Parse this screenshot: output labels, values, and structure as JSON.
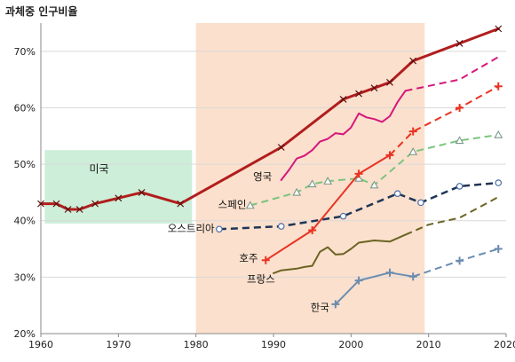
{
  "chart_data": {
    "type": "line",
    "ylabel": "과체중 인구비율",
    "xlim": [
      1960,
      2020
    ],
    "ylim": [
      20,
      75
    ],
    "x_ticks": [
      1960,
      1970,
      1980,
      1990,
      2000,
      2010,
      2020
    ],
    "x_tick_labels": [
      "1960",
      "1970",
      "1980",
      "1990",
      "2000",
      "2010",
      "2020"
    ],
    "y_ticks": [
      20,
      30,
      40,
      50,
      60,
      70
    ],
    "y_tick_labels": [
      "20%",
      "30%",
      "40%",
      "50%",
      "60%",
      "70%"
    ],
    "grid": "horizontal",
    "legend": "none",
    "bands": [
      {
        "label": "미국",
        "x_start": 1960.5,
        "x_end": 1979.5,
        "y_start": 39.5,
        "y_end": 52.5,
        "color": "#cdeed8"
      },
      {
        "label": "",
        "x_start": 1980,
        "x_end": 2009.5,
        "y_start": 20,
        "y_end": 75,
        "color": "#fbe0cd"
      }
    ],
    "series": [
      {
        "name": "미국",
        "color": "#b11d1d",
        "width": 3,
        "solid": [
          [
            1960,
            43.0
          ],
          [
            1962,
            43.0
          ],
          [
            1963.5,
            42.0
          ],
          [
            1965,
            42.0
          ],
          [
            1967,
            43.0
          ],
          [
            1970,
            44.0
          ],
          [
            1973,
            45.0
          ],
          [
            1978,
            43.0
          ],
          [
            1991,
            53.0
          ],
          [
            1999,
            61.5
          ],
          [
            2001,
            62.5
          ],
          [
            2003,
            63.5
          ],
          [
            2005,
            64.5
          ],
          [
            2008,
            68.3
          ],
          [
            2014,
            71.4
          ],
          [
            2019,
            74.0
          ]
        ],
        "markers": [
          [
            1960,
            43.0
          ],
          [
            1962,
            43.0
          ],
          [
            1963.5,
            42.0
          ],
          [
            1965,
            42.0
          ],
          [
            1967,
            43.0
          ],
          [
            1970,
            44.0
          ],
          [
            1973,
            45.0
          ],
          [
            1978,
            43.0
          ],
          [
            1991,
            53.0
          ],
          [
            1999,
            61.5
          ],
          [
            2001,
            62.5
          ],
          [
            2003,
            63.5
          ],
          [
            2005,
            64.5
          ],
          [
            2008,
            68.3
          ],
          [
            2014,
            71.4
          ],
          [
            2019,
            74.0
          ]
        ],
        "marker": "x"
      },
      {
        "name": "영국",
        "color": "#d6177a",
        "width": 2,
        "solid": [
          [
            1991,
            47.2
          ],
          [
            1992,
            49.0
          ],
          [
            1993,
            51.0
          ],
          [
            1994,
            51.5
          ],
          [
            1995,
            52.5
          ],
          [
            1996,
            54.0
          ],
          [
            1997,
            54.5
          ],
          [
            1998,
            55.5
          ],
          [
            1999,
            55.3
          ],
          [
            2000,
            56.5
          ],
          [
            2001,
            59.0
          ],
          [
            2002,
            58.3
          ],
          [
            2003,
            58.0
          ],
          [
            2004,
            57.5
          ],
          [
            2005,
            58.5
          ],
          [
            2006,
            61.0
          ],
          [
            2007,
            63.0
          ]
        ],
        "dashed": [
          [
            2007,
            63.0
          ],
          [
            2014,
            65.0
          ],
          [
            2019,
            69.0
          ]
        ],
        "markers": [],
        "marker": "none"
      },
      {
        "name": "스페인",
        "color": "#7bc47f",
        "width": 2,
        "solid": [],
        "dashed": [
          [
            1987,
            42.7
          ],
          [
            1993,
            45.0
          ],
          [
            1995,
            46.5
          ],
          [
            1997,
            47.0
          ],
          [
            2001,
            47.5
          ],
          [
            2003,
            46.3
          ],
          [
            2008,
            52.2
          ],
          [
            2014,
            54.2
          ],
          [
            2019,
            55.2
          ]
        ],
        "markers": [
          [
            1987,
            42.7
          ],
          [
            1993,
            45.0
          ],
          [
            1995,
            46.5
          ],
          [
            1997,
            47.0
          ],
          [
            2001,
            47.5
          ],
          [
            2003,
            46.3
          ],
          [
            2008,
            52.2
          ],
          [
            2014,
            54.2
          ],
          [
            2019,
            55.2
          ]
        ],
        "marker": "triangle"
      },
      {
        "name": "오스트리아",
        "color": "#1f3556",
        "width": 2.5,
        "solid": [],
        "dashed": [
          [
            1983,
            38.5
          ],
          [
            1991,
            39.0
          ],
          [
            1999,
            40.8
          ],
          [
            2006,
            44.8
          ],
          [
            2009,
            43.2
          ],
          [
            2014,
            46.1
          ],
          [
            2019,
            46.7
          ]
        ],
        "markers": [
          [
            1983,
            38.5
          ],
          [
            1991,
            39.0
          ],
          [
            1999,
            40.8
          ],
          [
            2006,
            44.8
          ],
          [
            2009,
            43.2
          ],
          [
            2014,
            46.1
          ],
          [
            2019,
            46.7
          ]
        ],
        "marker": "circle"
      },
      {
        "name": "호주",
        "color": "#ea3323",
        "width": 2,
        "solid": [
          [
            1989,
            33.0
          ],
          [
            1995,
            38.3
          ],
          [
            2001,
            48.3
          ],
          [
            2005,
            51.6
          ]
        ],
        "dashed": [
          [
            2005,
            51.6
          ],
          [
            2008,
            55.8
          ],
          [
            2014,
            60.0
          ],
          [
            2019,
            63.8
          ]
        ],
        "markers": [
          [
            1989,
            33.0
          ],
          [
            1995,
            38.3
          ],
          [
            2001,
            48.3
          ],
          [
            2005,
            51.6
          ],
          [
            2008,
            55.8
          ],
          [
            2014,
            60.0
          ],
          [
            2019,
            63.8
          ]
        ],
        "marker": "plus"
      },
      {
        "name": "프랑스",
        "color": "#6b6422",
        "width": 2,
        "solid": [
          [
            1990,
            30.7
          ],
          [
            1991,
            31.2
          ],
          [
            1993,
            31.5
          ],
          [
            1994,
            31.8
          ],
          [
            1995,
            32.0
          ],
          [
            1996,
            34.5
          ],
          [
            1997,
            35.3
          ],
          [
            1998,
            34.0
          ],
          [
            1999,
            34.1
          ],
          [
            2000,
            35.0
          ],
          [
            2001,
            36.1
          ],
          [
            2002,
            36.3
          ],
          [
            2003,
            36.5
          ],
          [
            2005,
            36.3
          ],
          [
            2007,
            37.5
          ]
        ],
        "dashed": [
          [
            2007,
            37.5
          ],
          [
            2010,
            39.3
          ],
          [
            2014,
            40.5
          ],
          [
            2019,
            44.2
          ]
        ],
        "markers": [],
        "marker": "none"
      },
      {
        "name": "한국",
        "color": "#6a8caf",
        "width": 2,
        "solid": [
          [
            1998,
            25.2
          ],
          [
            2001,
            29.4
          ],
          [
            2005,
            30.8
          ],
          [
            2008,
            30.1
          ]
        ],
        "dashed": [
          [
            2008,
            30.1
          ],
          [
            2014,
            32.9
          ],
          [
            2019,
            35.0
          ]
        ],
        "markers": [
          [
            1998,
            25.2
          ],
          [
            2001,
            29.4
          ],
          [
            2005,
            30.8
          ],
          [
            2008,
            30.1
          ],
          [
            2014,
            32.9
          ],
          [
            2019,
            35.0
          ]
        ],
        "marker": "plus"
      }
    ],
    "annotations": [
      {
        "text": "미국",
        "x": 1967.5,
        "y": 48.5,
        "anchor": "middle"
      },
      {
        "text": "영국",
        "x": 1989.8,
        "y": 47.2,
        "anchor": "end"
      },
      {
        "text": "스페인",
        "x": 1986.5,
        "y": 42.2,
        "anchor": "end"
      },
      {
        "text": "오스트리아",
        "x": 1982.4,
        "y": 38.0,
        "anchor": "end"
      },
      {
        "text": "호주",
        "x": 1988.0,
        "y": 32.7,
        "anchor": "end"
      },
      {
        "text": "프랑스",
        "x": 1990.2,
        "y": 29.0,
        "anchor": "end"
      },
      {
        "text": "한국",
        "x": 1997.2,
        "y": 24.0,
        "anchor": "end"
      }
    ]
  }
}
